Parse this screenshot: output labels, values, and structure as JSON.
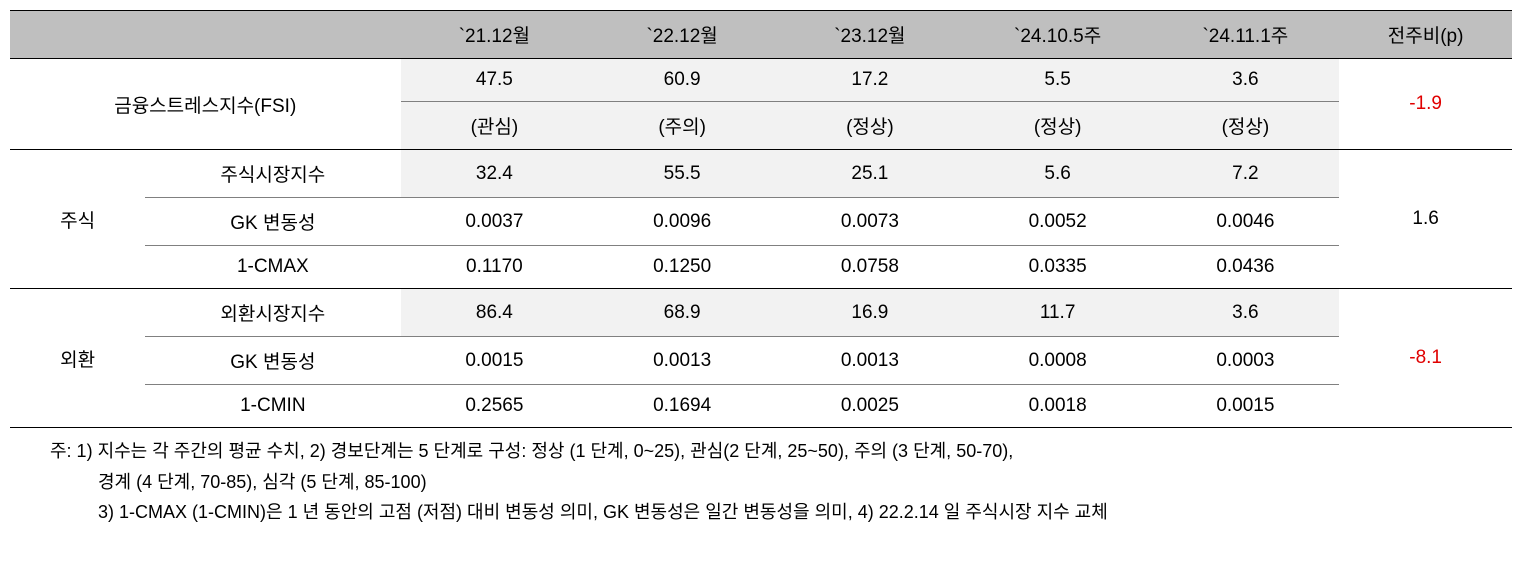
{
  "headers": {
    "c1": "`21.12월",
    "c2": "`22.12월",
    "c3": "`23.12월",
    "c4": "`24.10.5주",
    "c5": "`24.11.1주",
    "wow": "전주비(p)"
  },
  "fsi": {
    "label": "금융스트레스지수(FSI)",
    "vals": [
      "47.5",
      "60.9",
      "17.2",
      "5.5",
      "3.6"
    ],
    "levels": [
      "(관심)",
      "(주의)",
      "(정상)",
      "(정상)",
      "(정상)"
    ],
    "wow": "-1.9"
  },
  "stock": {
    "group": "주식",
    "r1": {
      "label": "주식시장지수",
      "vals": [
        "32.4",
        "55.5",
        "25.1",
        "5.6",
        "7.2"
      ]
    },
    "r2": {
      "label": "GK 변동성",
      "vals": [
        "0.0037",
        "0.0096",
        "0.0073",
        "0.0052",
        "0.0046"
      ]
    },
    "r3": {
      "label": "1-CMAX",
      "vals": [
        "0.1170",
        "0.1250",
        "0.0758",
        "0.0335",
        "0.0436"
      ]
    },
    "wow": "1.6"
  },
  "fx": {
    "group": "외환",
    "r1": {
      "label": "외환시장지수",
      "vals": [
        "86.4",
        "68.9",
        "16.9",
        "11.7",
        "3.6"
      ]
    },
    "r2": {
      "label": "GK 변동성",
      "vals": [
        "0.0015",
        "0.0013",
        "0.0013",
        "0.0008",
        "0.0003"
      ]
    },
    "r3": {
      "label": "1-CMIN",
      "vals": [
        "0.2565",
        "0.1694",
        "0.0025",
        "0.0018",
        "0.0015"
      ]
    },
    "wow": "-8.1"
  },
  "notes": {
    "n1": "주: 1) 지수는 각 주간의 평균 수치, 2) 경보단계는 5 단계로 구성: 정상 (1 단계, 0~25), 관심(2 단계, 25~50), 주의 (3 단계, 50-70),",
    "n2": "경계 (4 단계, 70-85), 심각 (5 단계, 85-100)",
    "n3": "3) 1-CMAX (1-CMIN)은 1 년 동안의 고점 (저점) 대비 변동성 의미, GK 변동성은 일간 변동성을 의미, 4) 22.2.14 일 주식시장 지수 교체"
  },
  "colors": {
    "header_bg": "#bfbfbf",
    "shade_bg": "#f2f2f2",
    "neg": "#e00000",
    "text": "#000000",
    "border_main": "#000000",
    "border_inner": "#808080"
  }
}
